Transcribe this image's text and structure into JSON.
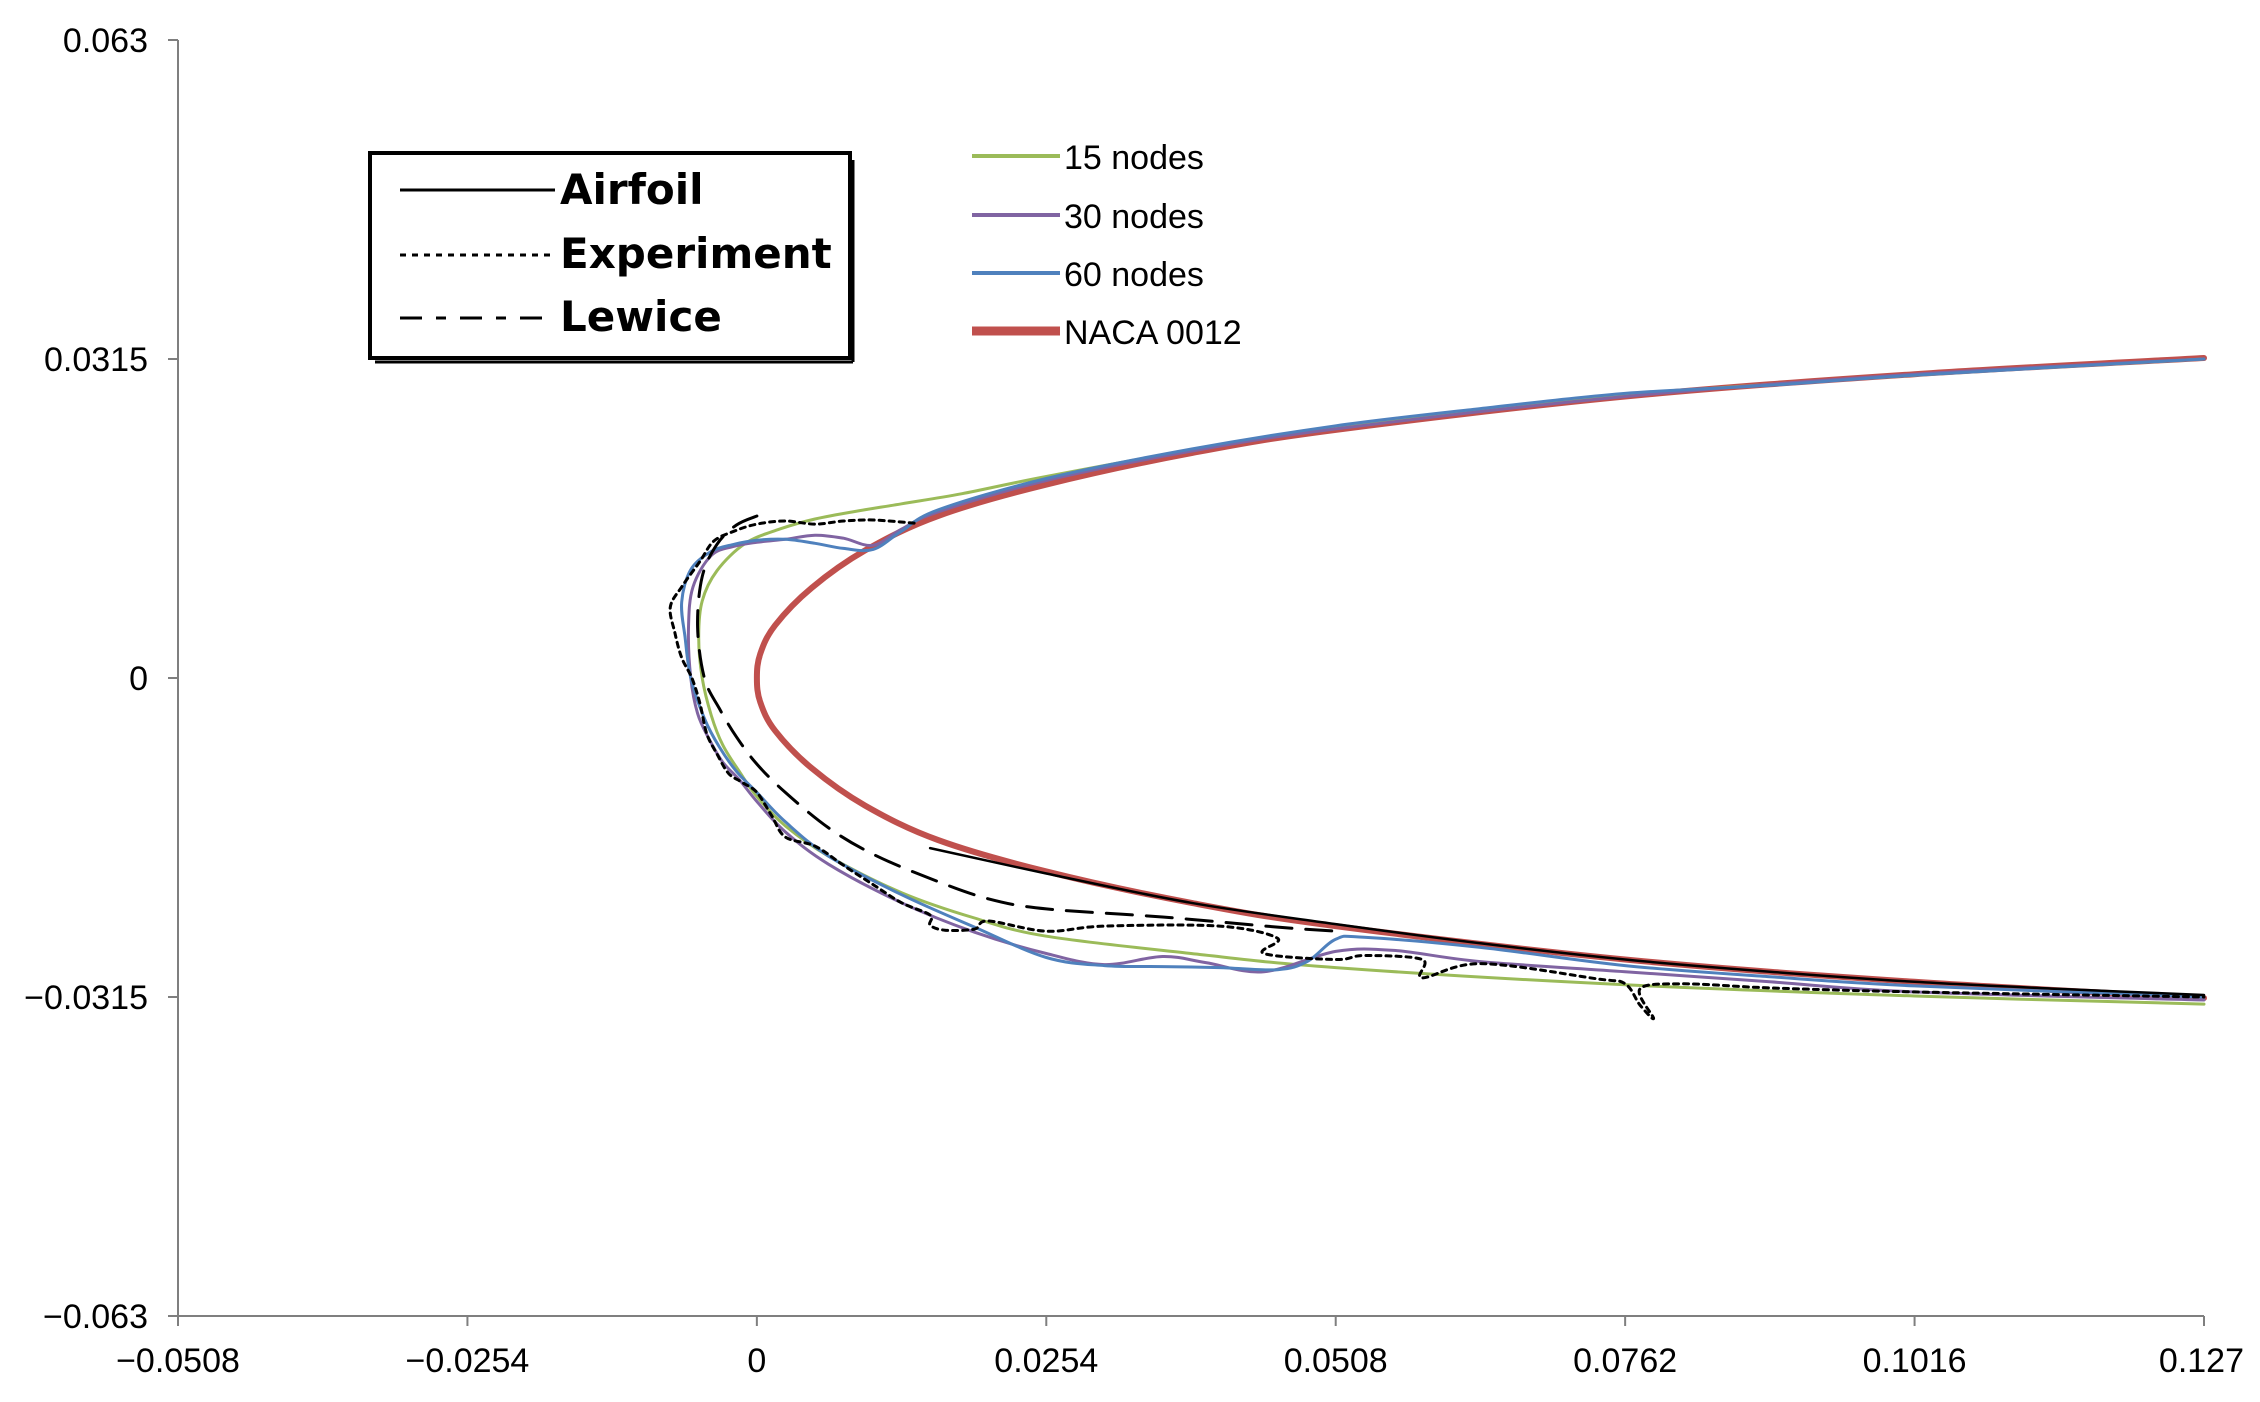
{
  "chart_data": {
    "type": "line",
    "title": "",
    "xlabel": "",
    "ylabel": "",
    "xlim": [
      -0.0508,
      0.127
    ],
    "ylim": [
      -0.063,
      0.063
    ],
    "grid": false,
    "x_ticks": [
      "−0.0508",
      "−0.0254",
      "0",
      "0.0254",
      "0.0508",
      "0.0762",
      "0.1016",
      "0.127"
    ],
    "x_tick_values": [
      -0.0508,
      -0.0254,
      0,
      0.0254,
      0.0508,
      0.0762,
      0.1016,
      0.127
    ],
    "y_ticks": [
      "0.063",
      "0.0315",
      "0",
      "−0.0315",
      "−0.063"
    ],
    "y_tick_values": [
      0.063,
      0.0315,
      0,
      -0.0315,
      -0.063
    ],
    "legend_scanned": {
      "placement": "top-left",
      "entries": [
        {
          "name": "Airfoil",
          "style": "solid"
        },
        {
          "name": "Experiment",
          "style": "dotted"
        },
        {
          "name": "Lewice",
          "style": "dashed"
        }
      ]
    },
    "legend": {
      "placement": "top-center",
      "entries": [
        "15 nodes",
        "30 nodes",
        "60 nodes",
        "NACA 0012"
      ]
    },
    "series": [
      {
        "name": "NACA 0012",
        "color": "#c0504d",
        "style": "solid",
        "width": 6,
        "x": [
          0.127,
          0.1016,
          0.0762,
          0.0508,
          0.0381,
          0.0254,
          0.0159,
          0.0095,
          0.0048,
          0.0016,
          0.0003,
          0.0,
          0.0003,
          0.0016,
          0.0048,
          0.0095,
          0.0159,
          0.0254,
          0.0381,
          0.0508,
          0.0762,
          0.1016,
          0.127
        ],
        "y": [
          0.0316,
          0.03,
          0.0278,
          0.0245,
          0.0222,
          0.0191,
          0.016,
          0.0126,
          0.0089,
          0.0052,
          0.0024,
          0.0,
          -0.0024,
          -0.0052,
          -0.0089,
          -0.0126,
          -0.016,
          -0.0191,
          -0.0222,
          -0.0245,
          -0.0278,
          -0.03,
          -0.0316
        ]
      },
      {
        "name": "15 nodes",
        "color": "#9bbb59",
        "style": "solid",
        "width": 3,
        "x": [
          0.127,
          0.1016,
          0.0762,
          0.0508,
          0.0381,
          0.0254,
          0.018,
          0.0127,
          0.0089,
          0.0051,
          0.002,
          -0.001,
          -0.0035,
          -0.0048,
          -0.0051,
          -0.0048,
          -0.004,
          -0.003,
          -0.0015,
          0.0,
          0.0025,
          0.0063,
          0.0127,
          0.0191,
          0.0254,
          0.0381,
          0.0508,
          0.0762,
          0.1016,
          0.127
        ],
        "y": [
          0.0315,
          0.0299,
          0.0279,
          0.0247,
          0.0225,
          0.0199,
          0.0182,
          0.0172,
          0.0165,
          0.0157,
          0.0147,
          0.0133,
          0.0106,
          0.0076,
          0.004,
          0.0,
          -0.0037,
          -0.0066,
          -0.0093,
          -0.0117,
          -0.0146,
          -0.0176,
          -0.0212,
          -0.0237,
          -0.0255,
          -0.0272,
          -0.0286,
          -0.0303,
          -0.0314,
          -0.0322
        ]
      },
      {
        "name": "30 nodes",
        "color": "#8064a2",
        "style": "solid",
        "width": 3,
        "x": [
          0.127,
          0.1016,
          0.0762,
          0.0508,
          0.0381,
          0.0254,
          0.0159,
          0.0127,
          0.0102,
          0.0076,
          0.0051,
          0.0025,
          0.0,
          -0.002,
          -0.004,
          -0.0056,
          -0.006,
          -0.0058,
          -0.0052,
          -0.0042,
          -0.003,
          -0.0015,
          0.0,
          0.0025,
          0.0063,
          0.0127,
          0.0191,
          0.0254,
          0.0305,
          0.0356,
          0.0394,
          0.0445,
          0.0508,
          0.0559,
          0.0635,
          0.0762,
          0.0889,
          0.1016,
          0.127
        ],
        "y": [
          0.0315,
          0.03,
          0.0278,
          0.0246,
          0.0224,
          0.0195,
          0.0164,
          0.0147,
          0.0131,
          0.0138,
          0.0141,
          0.0137,
          0.0134,
          0.013,
          0.0121,
          0.009,
          0.005,
          0.0,
          -0.0035,
          -0.006,
          -0.0083,
          -0.0101,
          -0.0122,
          -0.0152,
          -0.0184,
          -0.0222,
          -0.0251,
          -0.0272,
          -0.0283,
          -0.0275,
          -0.0281,
          -0.029,
          -0.027,
          -0.0269,
          -0.028,
          -0.029,
          -0.03,
          -0.031,
          -0.0318
        ]
      },
      {
        "name": "60 nodes",
        "color": "#4f81bd",
        "style": "solid",
        "width": 3,
        "x": [
          0.127,
          0.1016,
          0.0889,
          0.0762,
          0.0635,
          0.0508,
          0.0381,
          0.0254,
          0.0159,
          0.0127,
          0.0102,
          0.0076,
          0.0051,
          0.0025,
          0.0,
          -0.002,
          -0.004,
          -0.0058,
          -0.0066,
          -0.0063,
          -0.0058,
          -0.0046,
          -0.0033,
          -0.0018,
          0.0,
          0.0025,
          0.0063,
          0.0127,
          0.0191,
          0.0254,
          0.0305,
          0.0356,
          0.0406,
          0.0457,
          0.0483,
          0.0508,
          0.0533,
          0.0635,
          0.0762,
          0.0889,
          0.1016,
          0.127
        ],
        "y": [
          0.0315,
          0.0299,
          0.0289,
          0.0281,
          0.0266,
          0.0249,
          0.0226,
          0.0197,
          0.0166,
          0.0145,
          0.0127,
          0.0128,
          0.0133,
          0.0137,
          0.0136,
          0.0132,
          0.0125,
          0.0107,
          0.0075,
          0.004,
          0.0,
          -0.004,
          -0.0068,
          -0.0092,
          -0.0113,
          -0.0142,
          -0.0176,
          -0.0214,
          -0.0246,
          -0.0276,
          -0.0284,
          -0.0285,
          -0.0286,
          -0.0288,
          -0.028,
          -0.0258,
          -0.0256,
          -0.0266,
          -0.0284,
          -0.0295,
          -0.0304,
          -0.0315
        ]
      },
      {
        "name": "Lewice",
        "color": "#000000",
        "style": "dashed",
        "width": 3,
        "x": [
          0.0,
          -0.0018,
          -0.0035,
          -0.0048,
          -0.0052,
          -0.0046,
          -0.0033,
          -0.0018,
          0.0,
          0.0025,
          0.0063,
          0.0102,
          0.0152,
          0.0203,
          0.0254,
          0.0356,
          0.0457,
          0.0508
        ],
        "y": [
          0.016,
          0.0151,
          0.0132,
          0.01,
          0.005,
          0.0,
          -0.003,
          -0.0058,
          -0.0085,
          -0.0113,
          -0.0148,
          -0.0174,
          -0.0198,
          -0.0218,
          -0.0228,
          -0.0236,
          -0.0246,
          -0.025
        ]
      },
      {
        "name": "Experiment",
        "color": "#000000",
        "style": "dotted",
        "width": 3,
        "x": [
          0.0138,
          0.0102,
          0.0076,
          0.0051,
          0.0025,
          0.0,
          -0.002,
          -0.0038,
          -0.005,
          -0.0066,
          -0.0076,
          -0.0072,
          -0.0066,
          -0.0057,
          -0.005,
          -0.0044,
          -0.0035,
          -0.0025,
          -0.0013,
          0.0,
          0.0013,
          0.0025,
          0.0051,
          0.0076,
          0.0102,
          0.0127,
          0.0152,
          0.0152,
          0.0165,
          0.0191,
          0.0203,
          0.0254,
          0.0305,
          0.0406,
          0.0457,
          0.0445,
          0.0508,
          0.0533,
          0.0584,
          0.0584,
          0.0635,
          0.0737,
          0.0762,
          0.0775,
          0.0787,
          0.0775,
          0.0813,
          0.0889,
          0.1016,
          0.127
        ],
        "y": [
          0.0153,
          0.0156,
          0.0155,
          0.0152,
          0.0155,
          0.0152,
          0.0145,
          0.0135,
          0.0115,
          0.009,
          0.007,
          0.0045,
          0.002,
          0.0,
          -0.0025,
          -0.0055,
          -0.0075,
          -0.0094,
          -0.0103,
          -0.0113,
          -0.0136,
          -0.0157,
          -0.0166,
          -0.0185,
          -0.0204,
          -0.0222,
          -0.0234,
          -0.0244,
          -0.0249,
          -0.0248,
          -0.024,
          -0.025,
          -0.0245,
          -0.0245,
          -0.0257,
          -0.0272,
          -0.0278,
          -0.0274,
          -0.0278,
          -0.0296,
          -0.0282,
          -0.0297,
          -0.0302,
          -0.0323,
          -0.0336,
          -0.0307,
          -0.0302,
          -0.0306,
          -0.031,
          -0.0315
        ]
      },
      {
        "name": "Airfoil",
        "color": "#000000",
        "style": "solid",
        "width": 2.5,
        "x": [
          0.0152,
          0.0254,
          0.0381,
          0.0508,
          0.0635,
          0.0762,
          0.0889,
          0.1016,
          0.1143,
          0.127
        ],
        "y": [
          -0.0168,
          -0.0193,
          -0.0222,
          -0.0243,
          -0.0262,
          -0.0278,
          -0.029,
          -0.03,
          -0.0307,
          -0.0313
        ]
      }
    ]
  }
}
